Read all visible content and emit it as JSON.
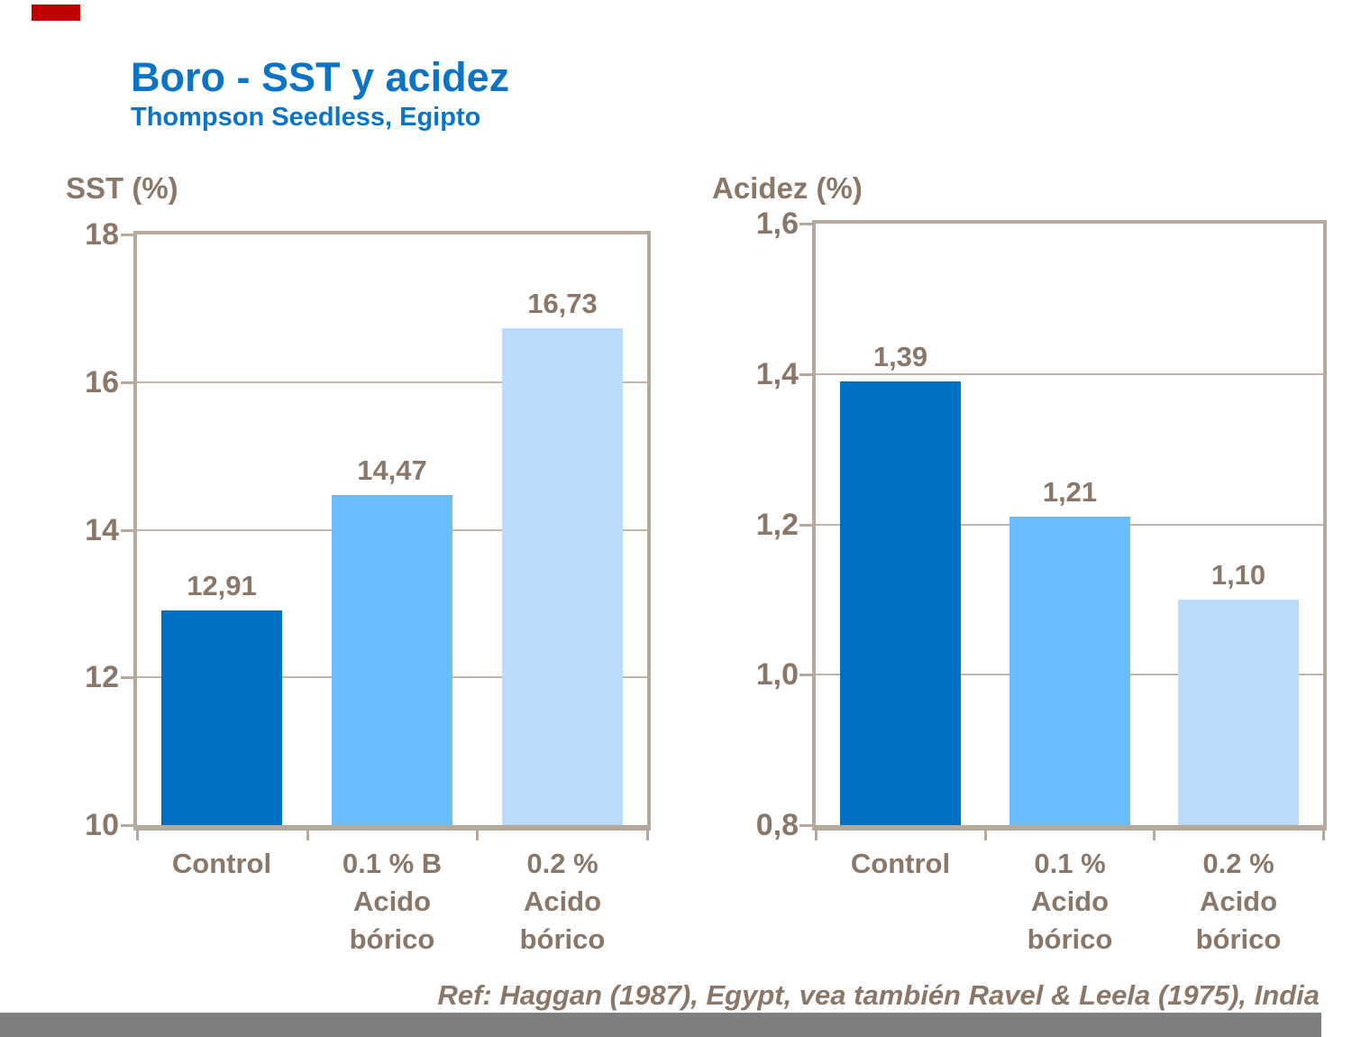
{
  "slide": {
    "title": "Boro - SST y acidez",
    "subtitle": "Thompson Seedless, Egipto",
    "reference": "Ref: Haggan  (1987), Egypt, vea también Ravel & Leela (1975), India",
    "colors": {
      "title_blue": "#0C74C6",
      "text_brown": "#8A7767",
      "frame_tan": "#B6A99B",
      "gridline_tan": "#C2B5A6",
      "footer_gray": "#7F7F7F",
      "accent_red": "#C00000"
    }
  },
  "chart_data": [
    {
      "type": "bar",
      "title": "SST (%)",
      "categories": [
        "Control",
        "0.1 % B\nAcido\nbórico",
        "0.2 %\nAcido\nbórico"
      ],
      "values": [
        12.91,
        14.47,
        16.73
      ],
      "value_labels": [
        "12,91",
        "14,47",
        "16,73"
      ],
      "ylim": [
        10,
        18
      ],
      "ytick_labels_top_to_bottom": [
        "18",
        "16",
        "14",
        "12",
        "10"
      ],
      "grid": true,
      "legend": false,
      "bar_colors": [
        "#0070C2",
        "#6ABDFC",
        "#BADCFA"
      ]
    },
    {
      "type": "bar",
      "title": "Acidez (%)",
      "categories": [
        "Control",
        "0.1 %\nAcido\nbórico",
        "0.2 %\nAcido\nbórico"
      ],
      "values": [
        1.39,
        1.21,
        1.1
      ],
      "value_labels": [
        "1,39",
        "1,21",
        "1,10"
      ],
      "ylim": [
        0.8,
        1.6
      ],
      "ytick_labels_top_to_bottom": [
        "1,6",
        "1,4",
        "1,2",
        "1,0",
        "0,8"
      ],
      "grid": true,
      "legend": false,
      "bar_colors": [
        "#0070C2",
        "#6ABDFC",
        "#BADCFA"
      ]
    }
  ]
}
